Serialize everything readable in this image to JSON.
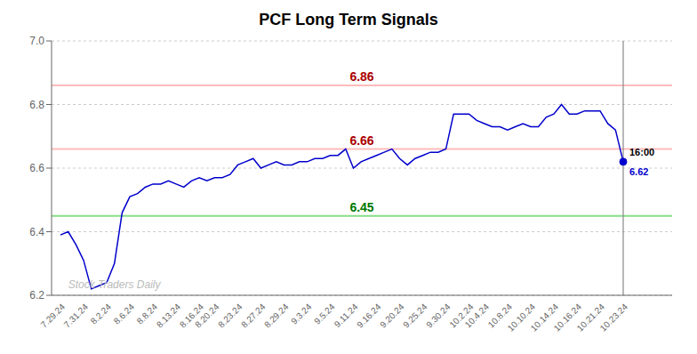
{
  "chart_data": {
    "type": "line",
    "title": "PCF Long Term Signals",
    "categories": [
      "7.29.24",
      null,
      null,
      "7.31.24",
      null,
      null,
      "8.2.24",
      null,
      null,
      "8.6.24",
      null,
      null,
      "8.8.24",
      null,
      null,
      "8.13.24",
      null,
      null,
      "8.16.24",
      null,
      "8.20.24",
      null,
      null,
      "8.23.24",
      null,
      null,
      "8.27.24",
      null,
      null,
      "8.29.24",
      null,
      null,
      "9.3.24",
      null,
      null,
      "9.5.24",
      null,
      null,
      "9.11.24",
      null,
      null,
      "9.16.24",
      null,
      null,
      "9.20.24",
      null,
      null,
      "9.25.24",
      null,
      null,
      "9.30.24",
      null,
      null,
      "10.2.24",
      null,
      "10.4.24",
      null,
      null,
      "10.8.24",
      null,
      null,
      "10.10.24",
      null,
      null,
      "10.14.24",
      null,
      null,
      "10.16.24",
      null,
      null,
      "10.21.24",
      null,
      null,
      "10.23.24"
    ],
    "values": [
      6.39,
      6.4,
      6.36,
      6.31,
      6.22,
      6.23,
      6.24,
      6.3,
      6.46,
      6.51,
      6.52,
      6.54,
      6.55,
      6.55,
      6.56,
      6.55,
      6.54,
      6.56,
      6.57,
      6.56,
      6.57,
      6.57,
      6.58,
      6.61,
      6.62,
      6.63,
      6.6,
      6.61,
      6.62,
      6.61,
      6.61,
      6.62,
      6.62,
      6.63,
      6.63,
      6.64,
      6.64,
      6.66,
      6.6,
      6.62,
      6.63,
      6.64,
      6.65,
      6.66,
      6.63,
      6.61,
      6.63,
      6.64,
      6.65,
      6.65,
      6.66,
      6.77,
      6.77,
      6.77,
      6.75,
      6.74,
      6.73,
      6.73,
      6.72,
      6.73,
      6.74,
      6.73,
      6.73,
      6.76,
      6.77,
      6.8,
      6.77,
      6.77,
      6.78,
      6.78,
      6.78,
      6.74,
      6.72,
      6.62
    ],
    "color": "#0000cc",
    "ylim": [
      6.2,
      7.0
    ],
    "yticks": [
      6.2,
      6.4,
      6.6,
      6.8,
      {
        "value": 7.0,
        "label": "7.0"
      }
    ],
    "grid": true,
    "annotations": [
      {
        "type": "hline",
        "y": 6.86,
        "text": "6.86",
        "color": "#aa0000",
        "line_color": "#ffbbbb"
      },
      {
        "type": "hline",
        "y": 6.66,
        "text": "6.66",
        "color": "#aa0000",
        "line_color": "#ffbbbb"
      },
      {
        "type": "hline",
        "y": 6.45,
        "text": "6.45",
        "color": "#007700",
        "line_color": "#88dd88"
      },
      {
        "type": "end",
        "y": 6.62,
        "time_label": "16:00",
        "value_label": "6.62",
        "line_color": "#888888"
      },
      {
        "type": "watermark",
        "x": 1,
        "y": 6.215,
        "text": "Stock Traders Daily",
        "color": "#bbbbbb"
      }
    ]
  }
}
